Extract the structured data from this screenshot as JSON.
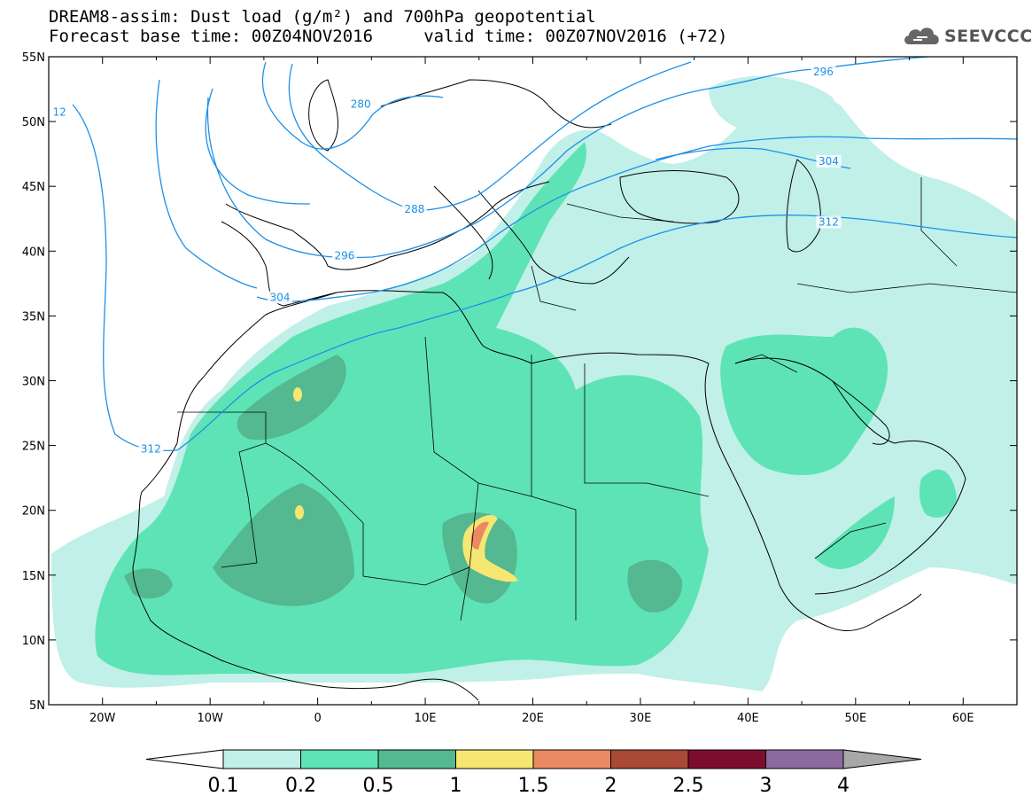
{
  "title": {
    "line1": "DREAM8-assim: Dust load (g/m²) and 700hPa geopotential",
    "line2": "Forecast base time: 00Z04NOV2016     valid time: 00Z07NOV2016 (+72)"
  },
  "logo": {
    "text": "SEEVCCC",
    "icon": "cloud-icon"
  },
  "map": {
    "lon_range": [
      -25,
      65
    ],
    "lat_range": [
      5,
      55
    ],
    "x_ticks": [
      {
        "lon": -20,
        "label": "20W"
      },
      {
        "lon": -10,
        "label": "10W"
      },
      {
        "lon": 0,
        "label": "0"
      },
      {
        "lon": 10,
        "label": "10E"
      },
      {
        "lon": 20,
        "label": "20E"
      },
      {
        "lon": 30,
        "label": "30E"
      },
      {
        "lon": 40,
        "label": "40E"
      },
      {
        "lon": 50,
        "label": "50E"
      },
      {
        "lon": 60,
        "label": "60E"
      }
    ],
    "y_ticks": [
      {
        "lat": 55,
        "label": "55N"
      },
      {
        "lat": 50,
        "label": "50N"
      },
      {
        "lat": 45,
        "label": "45N"
      },
      {
        "lat": 40,
        "label": "40N"
      },
      {
        "lat": 35,
        "label": "35N"
      },
      {
        "lat": 30,
        "label": "30N"
      },
      {
        "lat": 25,
        "label": "25N"
      },
      {
        "lat": 20,
        "label": "20N"
      },
      {
        "lat": 15,
        "label": "15N"
      },
      {
        "lat": 10,
        "label": "10N"
      },
      {
        "lat": 5,
        "label": "5N"
      }
    ],
    "contour_labels": [
      {
        "text": "12",
        "lon": -24,
        "lat": 50.6
      },
      {
        "text": "280",
        "lon": 4,
        "lat": 51.2
      },
      {
        "text": "296",
        "lon": 47,
        "lat": 53.7
      },
      {
        "text": "304",
        "lon": 47.5,
        "lat": 46.8
      },
      {
        "text": "288",
        "lon": 9,
        "lat": 43.1
      },
      {
        "text": "312",
        "lon": 47.5,
        "lat": 42.1
      },
      {
        "text": "296",
        "lon": 2.5,
        "lat": 39.5
      },
      {
        "text": "304",
        "lon": -3.5,
        "lat": 36.3
      },
      {
        "text": "312",
        "lon": -15.5,
        "lat": 24.6
      }
    ],
    "colors": {
      "contour": "#1e90e6",
      "coast": "#000000"
    }
  },
  "colorbar": {
    "colors": [
      "#c0f0e8",
      "#5ee3b6",
      "#54b890",
      "#f6e672",
      "#ea8a62",
      "#a94936",
      "#7d0d2e",
      "#8c6aa0"
    ],
    "labels": [
      "0.1",
      "0.2",
      "0.5",
      "1",
      "1.5",
      "2",
      "2.5",
      "3",
      "4"
    ]
  }
}
